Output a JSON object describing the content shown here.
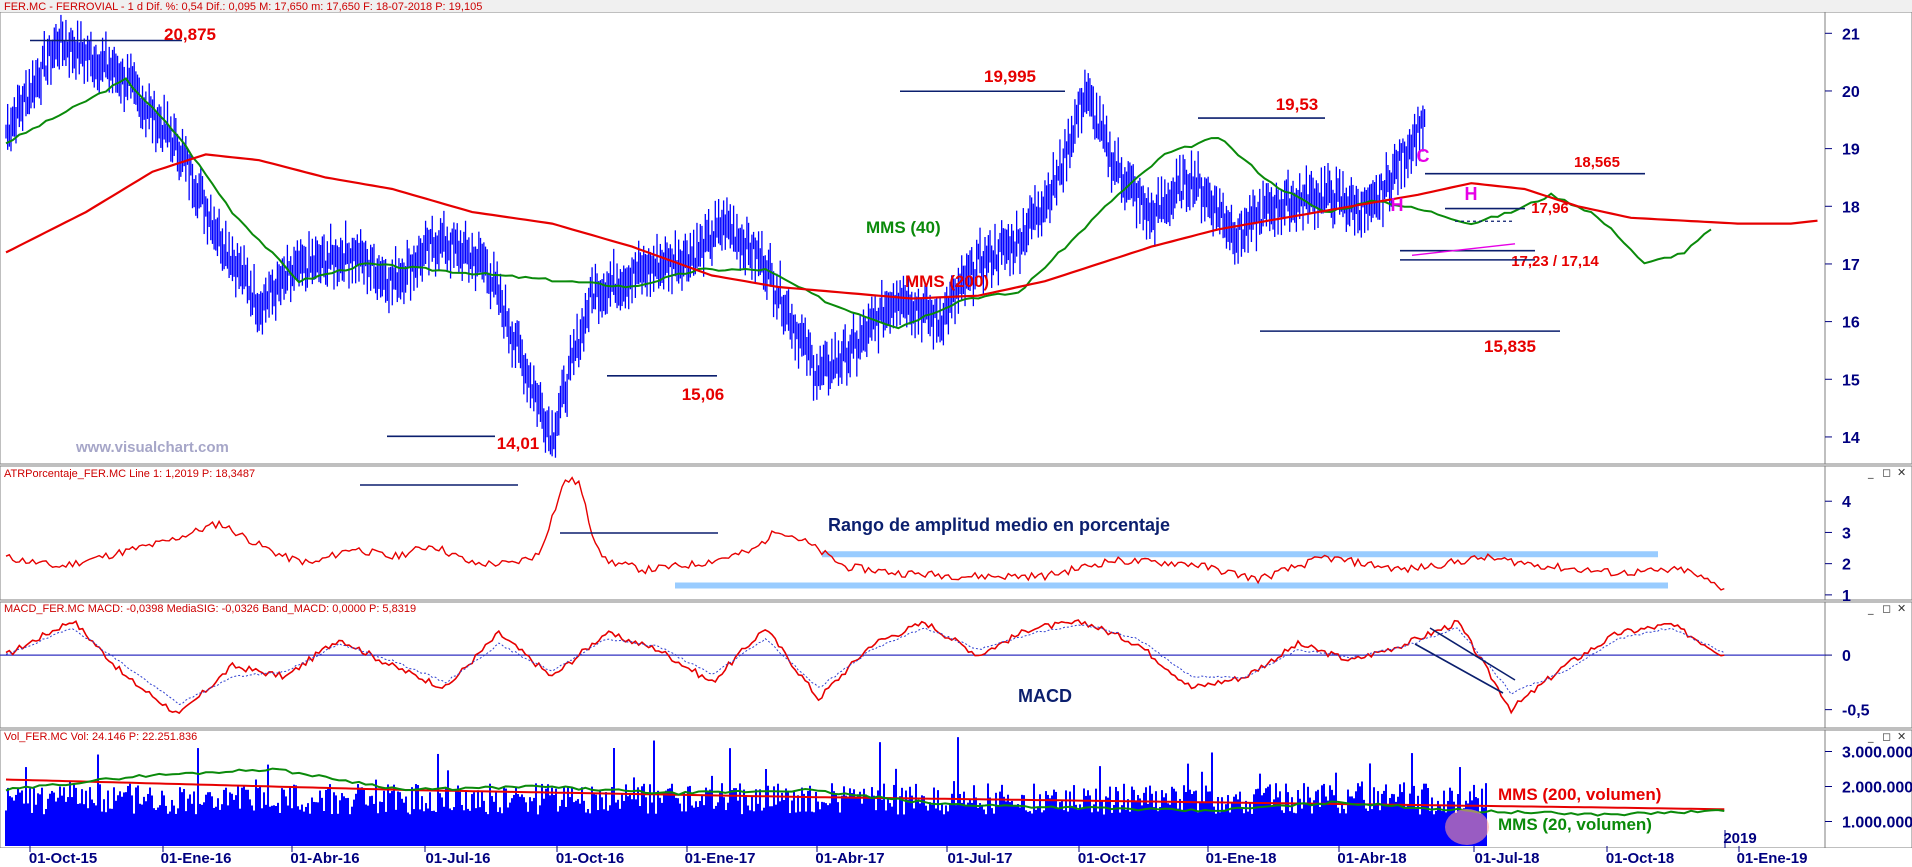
{
  "header": {
    "price_panel": "FER.MC - FERROVIAL - 1 d Dif. %: 0,54 Dif.: 0,095 M: 17,650 m: 17,650 F: 18-07-2018 P: 19,105",
    "atr_panel": "ATRPorcentaje_FER.MC Line 1: 1,2019 P: 18,3487",
    "macd_panel": "MACD_FER.MC MACD: -0,0398 MediaSIG: -0,0326 Band_MACD: 0,0000 P: 5,8319",
    "vol_panel": "Vol_FER.MC Vol: 24.146 P: 22.251.836"
  },
  "watermark": "www.visualchart.com",
  "colors": {
    "price": "#0000ff",
    "sma200": "#e60000",
    "sma40": "#0a8a0a",
    "annotation_red": "#e60000",
    "level_lines": "#0b1f6e",
    "atr_bands": "#99ccff",
    "pattern_letters": "#e600e6"
  },
  "chart_data": [
    {
      "panel": "price",
      "type": "line",
      "x_ticks": [
        "01-Oct-15",
        "01-Ene-16",
        "01-Abr-16",
        "01-Jul-16",
        "01-Oct-16",
        "01-Ene-17",
        "01-Abr-17",
        "01-Jul-17",
        "01-Oct-17",
        "01-Ene-18",
        "01-Abr-18",
        "01-Jul-18",
        "01-Oct-18",
        "01-Ene-19"
      ],
      "x_tick_extra": "2019",
      "y_ticks": [
        "21",
        "20",
        "19",
        "18",
        "17",
        "16",
        "15",
        "14"
      ],
      "ylim": [
        13.6,
        21.3
      ],
      "series": [
        {
          "name": "Price",
          "style": "bars",
          "x": [
            0,
            8,
            17,
            26,
            32,
            38,
            44,
            52,
            58,
            65,
            72,
            82,
            88,
            96,
            104,
            108,
            114,
            122,
            128,
            134,
            140,
            146,
            152,
            158,
            162,
            166,
            172,
            178,
            185,
            190,
            198,
            205,
            213
          ],
          "values": [
            19.3,
            20.875,
            20.3,
            19.0,
            17.5,
            16.3,
            16.9,
            17.2,
            16.7,
            17.4,
            17.0,
            14.01,
            16.5,
            16.9,
            17.2,
            17.7,
            17.0,
            15.06,
            15.6,
            16.5,
            16.0,
            17.0,
            17.4,
            18.5,
            19.995,
            18.8,
            17.8,
            18.5,
            17.5,
            18.0,
            18.2,
            17.9,
            19.53
          ]
        },
        {
          "name": "MMS (40)",
          "style": "line",
          "x": [
            0,
            10,
            18,
            26,
            34,
            44,
            54,
            64,
            74,
            84,
            94,
            104,
            114,
            124,
            134,
            144,
            152,
            160,
            166,
            174,
            182,
            190,
            198,
            206,
            214,
            220,
            226,
            232,
            238,
            242,
            246,
            252,
            256
          ],
          "values": [
            19.1,
            19.7,
            20.2,
            19.2,
            17.9,
            16.7,
            17.0,
            16.9,
            16.8,
            16.7,
            16.6,
            16.9,
            16.9,
            16.3,
            15.9,
            16.4,
            16.5,
            17.4,
            18.1,
            18.9,
            19.2,
            18.4,
            17.9,
            18.1,
            17.9,
            17.7,
            17.9,
            18.2,
            17.9,
            17.5,
            17.0,
            17.2,
            17.6
          ]
        },
        {
          "name": "MMS (200)",
          "style": "line",
          "x": [
            0,
            12,
            22,
            30,
            38,
            48,
            58,
            70,
            82,
            94,
            106,
            116,
            126,
            136,
            146,
            156,
            164,
            172,
            182,
            192,
            202,
            212,
            220,
            228,
            236,
            244,
            252,
            260,
            268,
            272
          ],
          "values": [
            17.2,
            17.9,
            18.6,
            18.9,
            18.8,
            18.5,
            18.3,
            17.9,
            17.7,
            17.3,
            16.8,
            16.6,
            16.5,
            16.4,
            16.45,
            16.7,
            17.0,
            17.3,
            17.6,
            17.8,
            18.0,
            18.2,
            18.4,
            18.3,
            18.0,
            17.8,
            17.75,
            17.7,
            17.7,
            17.75
          ]
        }
      ],
      "levels": [
        {
          "label": "20,875",
          "value": 20.875
        },
        {
          "label": "19,995",
          "value": 19.995
        },
        {
          "label": "19,53",
          "value": 19.53
        },
        {
          "label": "18,565",
          "value": 18.565
        },
        {
          "label": "17,96",
          "value": 17.96
        },
        {
          "label": "17,23 / 17,14",
          "value": 17.23
        },
        {
          "label": "15,835",
          "value": 15.835
        },
        {
          "label": "15,06",
          "value": 15.06
        },
        {
          "label": "14,01",
          "value": 14.01
        }
      ],
      "annotations": [
        "MMS (40)",
        "MMS (200)",
        "C",
        "H",
        "H"
      ]
    },
    {
      "panel": "atr",
      "type": "line",
      "title": "Rango de amplitud medio en porcentaje",
      "y_ticks": [
        "4",
        "3",
        "2",
        "1"
      ],
      "ylim": [
        0.9,
        5.0
      ],
      "series": [
        {
          "name": "Line 1",
          "x": [
            0,
            8,
            16,
            24,
            32,
            38,
            42,
            46,
            52,
            58,
            64,
            70,
            76,
            80,
            84,
            86,
            88,
            90,
            96,
            104,
            112,
            116,
            120,
            126,
            134,
            144,
            156,
            166,
            178,
            188,
            198,
            210,
            222,
            232,
            242,
            252,
            258
          ],
          "values": [
            2.2,
            1.9,
            2.3,
            2.7,
            3.3,
            2.6,
            2.2,
            2.0,
            2.5,
            2.2,
            2.6,
            2.0,
            2.0,
            2.3,
            4.7,
            4.6,
            3.0,
            2.1,
            1.8,
            2.0,
            2.4,
            3.1,
            2.7,
            1.9,
            1.7,
            1.6,
            1.6,
            2.1,
            2.0,
            1.5,
            2.2,
            1.8,
            2.2,
            1.9,
            1.7,
            1.8,
            1.2
          ]
        }
      ],
      "bands": [
        {
          "value": 2.3
        },
        {
          "value": 1.3
        }
      ]
    },
    {
      "panel": "macd",
      "type": "line",
      "label": "MACD",
      "y_ticks": [
        "0",
        "-0,5"
      ],
      "ylim": [
        -0.65,
        0.45
      ],
      "series": [
        {
          "name": "MACD",
          "x": [
            0,
            10,
            18,
            26,
            34,
            42,
            50,
            58,
            66,
            74,
            82,
            90,
            98,
            106,
            114,
            122,
            130,
            138,
            146,
            154,
            162,
            170,
            178,
            186,
            194,
            202,
            210,
            218,
            226,
            234,
            242,
            250,
            258
          ],
          "values": [
            0.0,
            0.32,
            -0.2,
            -0.55,
            -0.1,
            -0.2,
            0.15,
            -0.1,
            -0.3,
            0.2,
            -0.2,
            0.2,
            0.05,
            -0.25,
            0.25,
            -0.4,
            0.1,
            0.3,
            0.0,
            0.25,
            0.3,
            0.1,
            -0.3,
            -0.2,
            0.1,
            -0.05,
            0.1,
            0.3,
            -0.5,
            -0.1,
            0.2,
            0.28,
            0.0
          ]
        },
        {
          "name": "MediaSIG",
          "x": [
            0,
            10,
            18,
            26,
            34,
            42,
            50,
            58,
            66,
            74,
            82,
            90,
            98,
            106,
            114,
            122,
            130,
            138,
            146,
            154,
            162,
            170,
            178,
            186,
            194,
            202,
            210,
            218,
            226,
            234,
            242,
            250,
            258
          ],
          "values": [
            0.0,
            0.25,
            -0.1,
            -0.45,
            -0.2,
            -0.15,
            0.1,
            -0.05,
            -0.25,
            0.1,
            -0.15,
            0.15,
            0.08,
            -0.18,
            0.15,
            -0.3,
            0.05,
            0.25,
            0.05,
            0.2,
            0.28,
            0.15,
            -0.2,
            -0.2,
            0.05,
            -0.02,
            0.08,
            0.25,
            -0.35,
            -0.15,
            0.15,
            0.25,
            0.02
          ]
        }
      ]
    },
    {
      "panel": "volume",
      "type": "bar",
      "y_ticks": [
        "3.000.000",
        "2.000.000",
        "1.000.000"
      ],
      "ylim": [
        300000,
        3500000
      ],
      "series": [
        {
          "name": "MMS (200, volumen)",
          "x": [
            0,
            60,
            120,
            180,
            240,
            258
          ],
          "values": [
            2200000,
            1900000,
            1700000,
            1550000,
            1400000,
            1350000
          ]
        },
        {
          "name": "MMS (20, volumen)",
          "x": [
            0,
            20,
            40,
            60,
            80,
            100,
            120,
            140,
            160,
            180,
            200,
            220,
            240,
            258
          ],
          "values": [
            1900000,
            2300000,
            2500000,
            1900000,
            2000000,
            1800000,
            1900000,
            1500000,
            1400000,
            1300000,
            1550000,
            1300000,
            1200000,
            1300000
          ]
        }
      ]
    }
  ]
}
